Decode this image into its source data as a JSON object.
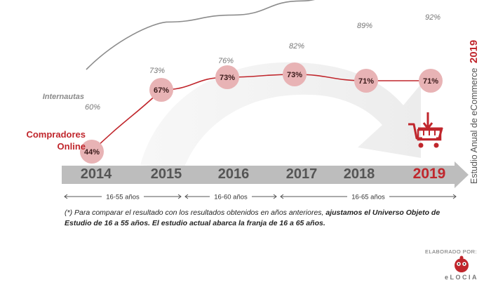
{
  "chart_data": {
    "type": "line",
    "categories": [
      "2014",
      "2015",
      "2016",
      "2017",
      "2018",
      "2019"
    ],
    "highlight_category": "2019",
    "series": [
      {
        "name": "Internautas",
        "values": [
          60,
          73,
          76,
          82,
          89,
          92
        ],
        "labels": [
          "60%",
          "73%",
          "76%",
          "82%",
          "89%",
          "92%"
        ],
        "color": "#8c8c8c"
      },
      {
        "name": "Compradores Online",
        "values": [
          44,
          67,
          73,
          73,
          71,
          71
        ],
        "labels": [
          "44%",
          "67%",
          "73%",
          "73%",
          "71%",
          "71%"
        ],
        "color": "#c0262c"
      }
    ],
    "age_ranges": [
      {
        "label": "16-55 años",
        "from": "2014",
        "to": "2015"
      },
      {
        "label": "16-60 años",
        "from": "2016",
        "to": "2016"
      },
      {
        "label": "16-65 años",
        "from": "2017",
        "to": "2019"
      }
    ],
    "side_title_prefix": "Estudio Anual de eCommerce",
    "side_title_year": "2019",
    "grid": false,
    "legend": "left-inline"
  },
  "labels": {
    "internautas": "Internautas",
    "compradores_line1": "Compradores",
    "compradores_line2": "Online"
  },
  "footnote": {
    "part1": "(*) Para comparar el resultado con los resultados obtenidos en años anteriores, ",
    "bold1": "ajustamos el Universo Objeto de Estudio de 16 a 55 años. El estudio actual abarca la franja de 16 a 65 años."
  },
  "credit": {
    "label": "ELABORADO POR:",
    "brand": "eLOCIA"
  },
  "colors": {
    "red": "#c0262c",
    "gray": "#8c8c8c",
    "bubble": "#e8b3b5",
    "arrow": "#b5b5b5"
  },
  "icons": [
    "shopping-cart-icon",
    "down-arrow-icon"
  ]
}
